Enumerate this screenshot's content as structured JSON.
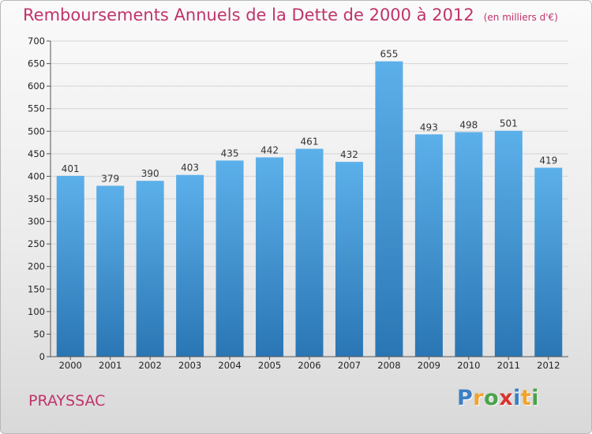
{
  "title": "Remboursements Annuels de la Dette de 2000 à 2012",
  "title_unit": "(en milliers d'€)",
  "commune": "PRAYSSAC",
  "logo": {
    "letters": [
      "P",
      "r",
      "o",
      "x",
      "i",
      "t",
      "i"
    ],
    "colors": [
      "#3a7fc4",
      "#f2a32c",
      "#4aa34a",
      "#d8342f",
      "#3a7fc4",
      "#f2a32c",
      "#4aa34a"
    ]
  },
  "colors": {
    "title": "#c0336b",
    "bar_top": "#5cb0ea",
    "bar_bottom": "#2a76b4",
    "grid": "#d4d4d4"
  },
  "chart_data": {
    "type": "bar",
    "categories": [
      "2000",
      "2001",
      "2002",
      "2003",
      "2004",
      "2005",
      "2006",
      "2007",
      "2008",
      "2009",
      "2010",
      "2011",
      "2012"
    ],
    "values": [
      401,
      379,
      390,
      403,
      435,
      442,
      461,
      432,
      655,
      493,
      498,
      501,
      419
    ],
    "ylim": [
      0,
      700
    ],
    "yticks": [
      0,
      50,
      100,
      150,
      200,
      250,
      300,
      350,
      400,
      450,
      500,
      550,
      600,
      650,
      700
    ],
    "grid": true,
    "legend": "none"
  }
}
